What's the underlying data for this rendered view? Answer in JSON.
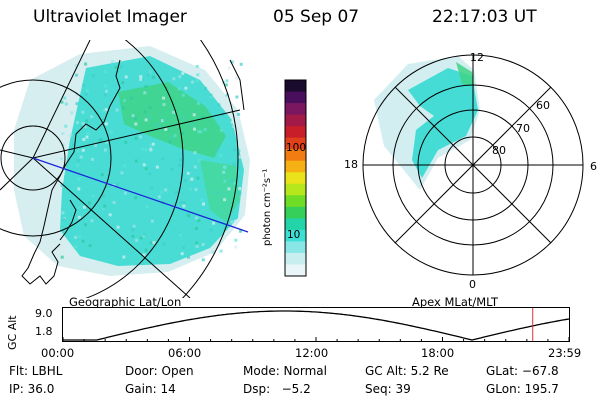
{
  "header": {
    "instrument": "Ultraviolet Imager",
    "date": "05 Sep 07",
    "time": "22:17:03 UT"
  },
  "colorbar": {
    "unit_label": "photon cm⁻²s⁻¹",
    "ticks": [
      "100",
      "10"
    ],
    "colors": [
      "#1a0a2e",
      "#4a0f5c",
      "#7a1760",
      "#a31a48",
      "#c81e2a",
      "#e0401a",
      "#f07c12",
      "#f5b014",
      "#eae21a",
      "#b6e61c",
      "#6fdc26",
      "#35cf5a",
      "#22d4a8",
      "#3ee0d6",
      "#8ae6e6",
      "#c8eef0",
      "#e9f5f6"
    ]
  },
  "geo_panel": {
    "label": "Geographic Lat/Lon",
    "colors": {
      "aurora_main": "#3fdcd2",
      "aurora_green": "#3ed27a",
      "aurora_faint": "#c9ebee",
      "track": "#1a22d8",
      "grid": "#000000"
    }
  },
  "polar_panel": {
    "label": "Apex MLat/MLT",
    "mlt_labels": [
      "12",
      "6",
      "0",
      "18"
    ],
    "mlat_labels": [
      "60",
      "70",
      "80"
    ]
  },
  "altitude_plot": {
    "y_label": "GC Alt",
    "y_ticks": [
      "9.0",
      "1.8"
    ],
    "x_ticks": [
      "00:00",
      "06:00",
      "12:00",
      "18:00",
      "23:59"
    ],
    "marker_color": "#e0303a",
    "marker_time_hours": 22.28
  },
  "info": {
    "rows": [
      [
        "Flt: LBHL",
        "Door: Open",
        "Mode: Normal",
        "GC Alt: 5.2 Re",
        "GLat: −67.8"
      ],
      [
        "IP: 36.0",
        "Gain: 14",
        "Dsp:   −5.2",
        "Seq: 39",
        "GLon: 195.7"
      ]
    ]
  }
}
